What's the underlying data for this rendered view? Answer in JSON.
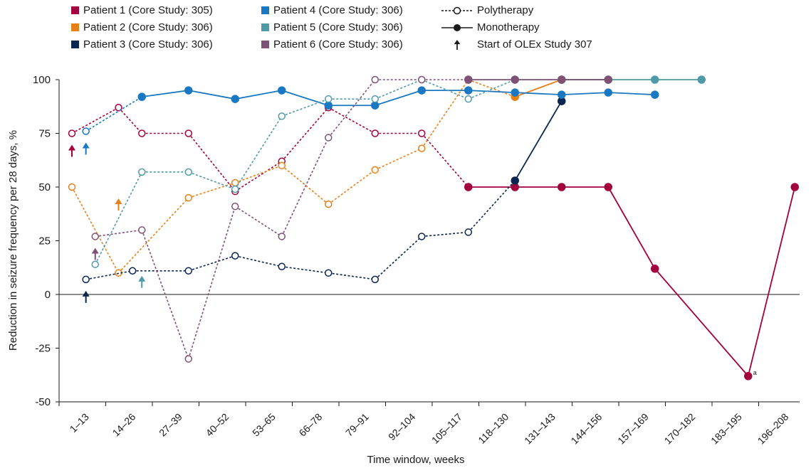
{
  "chart_data": {
    "type": "line",
    "xlabel": "Time window, weeks",
    "ylabel": "Reduction in seizure frequency per 28 days, %",
    "categories": [
      "1–13",
      "14–26",
      "27–39",
      "40–52",
      "53–65",
      "66–78",
      "79–91",
      "92–104",
      "105–117",
      "118–130",
      "131–143",
      "144–156",
      "157–169",
      "170–182",
      "183–195",
      "196–208"
    ],
    "ylim": [
      -50,
      100
    ],
    "yticks": [
      100,
      75,
      50,
      25,
      0,
      -25,
      -50
    ],
    "ytick_labels": [
      "100",
      "75",
      "50",
      "25",
      "0",
      "-25",
      "-50"
    ],
    "grid": false,
    "legend": {
      "placement": "top",
      "style_entries": [
        {
          "label": "Polytherapy"
        },
        {
          "label": "Monotherapy"
        },
        {
          "label": "Start of OLEx Study 307"
        }
      ]
    },
    "annotation": {
      "text": "a",
      "series": "Patient 1 (Core Study: 305)",
      "x": 14.5,
      "y": -38
    },
    "series": [
      {
        "name": "Patient 1 (Core Study: 305)",
        "color": "#a3003f",
        "start_x": 0,
        "points": [
          [
            0,
            75,
            "poly"
          ],
          [
            1,
            87,
            "poly"
          ],
          [
            1.5,
            75,
            "poly"
          ],
          [
            2.5,
            75,
            "poly"
          ],
          [
            3.5,
            48,
            "poly"
          ],
          [
            4.5,
            62,
            "poly"
          ],
          [
            5.5,
            87,
            "poly"
          ],
          [
            6.5,
            75,
            "poly"
          ],
          [
            7.5,
            75,
            "poly"
          ],
          [
            8.5,
            50,
            "mono"
          ],
          [
            9.5,
            50,
            "mono"
          ],
          [
            10.5,
            50,
            "mono"
          ],
          [
            11.5,
            50,
            "mono"
          ],
          [
            12.5,
            12,
            "mono"
          ],
          [
            14.5,
            -38,
            "mono"
          ],
          [
            15.5,
            50,
            "mono"
          ]
        ]
      },
      {
        "name": "Patient 2 (Core Study: 306)",
        "color": "#e8801a",
        "start_x": 1,
        "points": [
          [
            0,
            50,
            "poly"
          ],
          [
            1,
            10,
            "poly"
          ],
          [
            2.5,
            45,
            "poly"
          ],
          [
            3.5,
            52,
            "poly"
          ],
          [
            4.5,
            60,
            "poly"
          ],
          [
            5.5,
            42,
            "poly"
          ],
          [
            6.5,
            58,
            "poly"
          ],
          [
            7.5,
            68,
            "poly"
          ],
          [
            8.5,
            100,
            "poly"
          ],
          [
            9.5,
            92,
            "mono"
          ],
          [
            10.5,
            100,
            "mono"
          ],
          [
            11.5,
            100,
            "mono"
          ]
        ]
      },
      {
        "name": "Patient 3 (Core Study: 306)",
        "color": "#0a2550",
        "start_x": 0.3,
        "points": [
          [
            0.3,
            7,
            "poly"
          ],
          [
            1.3,
            11,
            "poly"
          ],
          [
            2.5,
            11,
            "poly"
          ],
          [
            3.5,
            18,
            "poly"
          ],
          [
            4.5,
            13,
            "poly"
          ],
          [
            5.5,
            10,
            "poly"
          ],
          [
            6.5,
            7,
            "poly"
          ],
          [
            7.5,
            27,
            "poly"
          ],
          [
            8.5,
            29,
            "poly"
          ],
          [
            9.5,
            53,
            "mono"
          ],
          [
            10.5,
            90,
            "mono"
          ]
        ]
      },
      {
        "name": "Patient 4 (Core Study: 306)",
        "color": "#1a78c2",
        "start_x": 0.3,
        "points": [
          [
            0.3,
            76,
            "poly"
          ],
          [
            1.5,
            92,
            "mono"
          ],
          [
            2.5,
            95,
            "mono"
          ],
          [
            3.5,
            91,
            "mono"
          ],
          [
            4.5,
            95,
            "mono"
          ],
          [
            5.5,
            88,
            "mono"
          ],
          [
            6.5,
            88,
            "mono"
          ],
          [
            7.5,
            95,
            "mono"
          ],
          [
            8.5,
            95,
            "mono"
          ],
          [
            9.5,
            94,
            "mono"
          ],
          [
            10.5,
            93,
            "mono"
          ],
          [
            11.5,
            94,
            "mono"
          ],
          [
            12.5,
            93,
            "mono"
          ]
        ]
      },
      {
        "name": "Patient 5 (Core Study: 306)",
        "color": "#4f9aa8",
        "start_x": 1.5,
        "points": [
          [
            0.5,
            14,
            "poly"
          ],
          [
            1.5,
            57,
            "poly"
          ],
          [
            2.5,
            57,
            "poly"
          ],
          [
            3.5,
            49,
            "poly"
          ],
          [
            4.5,
            83,
            "poly"
          ],
          [
            5.5,
            91,
            "poly"
          ],
          [
            6.5,
            91,
            "poly"
          ],
          [
            7.5,
            100,
            "poly"
          ],
          [
            8.5,
            91,
            "poly"
          ],
          [
            9.5,
            100,
            "poly"
          ],
          [
            10.5,
            100,
            "mono"
          ],
          [
            11.5,
            100,
            "mono"
          ],
          [
            12.5,
            100,
            "mono"
          ],
          [
            13.5,
            100,
            "mono"
          ]
        ]
      },
      {
        "name": "Patient 6 (Core Study: 306)",
        "color": "#7e5276",
        "start_x": 0.5,
        "points": [
          [
            0.5,
            27,
            "poly"
          ],
          [
            1.5,
            30,
            "poly"
          ],
          [
            2.5,
            -30,
            "poly"
          ],
          [
            3.5,
            41,
            "poly"
          ],
          [
            4.5,
            27,
            "poly"
          ],
          [
            5.5,
            73,
            "poly"
          ],
          [
            6.5,
            100,
            "poly"
          ],
          [
            7.5,
            100,
            "poly"
          ],
          [
            8.5,
            100,
            "mono"
          ],
          [
            9.5,
            100,
            "mono"
          ],
          [
            10.5,
            100,
            "mono"
          ],
          [
            11.5,
            100,
            "mono"
          ]
        ]
      }
    ]
  }
}
